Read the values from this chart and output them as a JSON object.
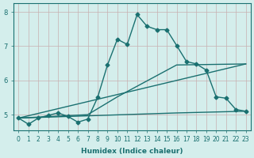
{
  "xlabel": "Humidex (Indice chaleur)",
  "bg_color": "#d4eeec",
  "line_color": "#1a7070",
  "grid_color": "#c8b0b0",
  "xlim": [
    -0.5,
    23.5
  ],
  "ylim": [
    4.55,
    8.25
  ],
  "xticks": [
    0,
    1,
    2,
    3,
    4,
    5,
    6,
    7,
    8,
    9,
    10,
    11,
    12,
    13,
    14,
    15,
    16,
    17,
    18,
    19,
    20,
    21,
    22,
    23
  ],
  "yticks": [
    5,
    6,
    7,
    8
  ],
  "series1_x": [
    0,
    1,
    2,
    3,
    4,
    5,
    6,
    7,
    8,
    9,
    10,
    11,
    12,
    13,
    14,
    15,
    16,
    17,
    18,
    19,
    20,
    21,
    22,
    23
  ],
  "series1_y": [
    4.9,
    4.72,
    4.9,
    4.98,
    5.05,
    4.95,
    4.78,
    4.87,
    5.5,
    6.45,
    7.2,
    7.05,
    7.92,
    7.58,
    7.48,
    7.48,
    7.02,
    6.55,
    6.48,
    6.3,
    5.52,
    5.48,
    5.15,
    5.1
  ],
  "series2_x": [
    0,
    23
  ],
  "series2_y": [
    4.9,
    6.48
  ],
  "series3_x": [
    0,
    7,
    10,
    16,
    23
  ],
  "series3_y": [
    4.9,
    5.0,
    5.52,
    6.45,
    6.48
  ],
  "series4_x": [
    0,
    16,
    23
  ],
  "series4_y": [
    4.9,
    5.05,
    5.1
  ],
  "marker_size": 2.5,
  "line_width": 1.0
}
